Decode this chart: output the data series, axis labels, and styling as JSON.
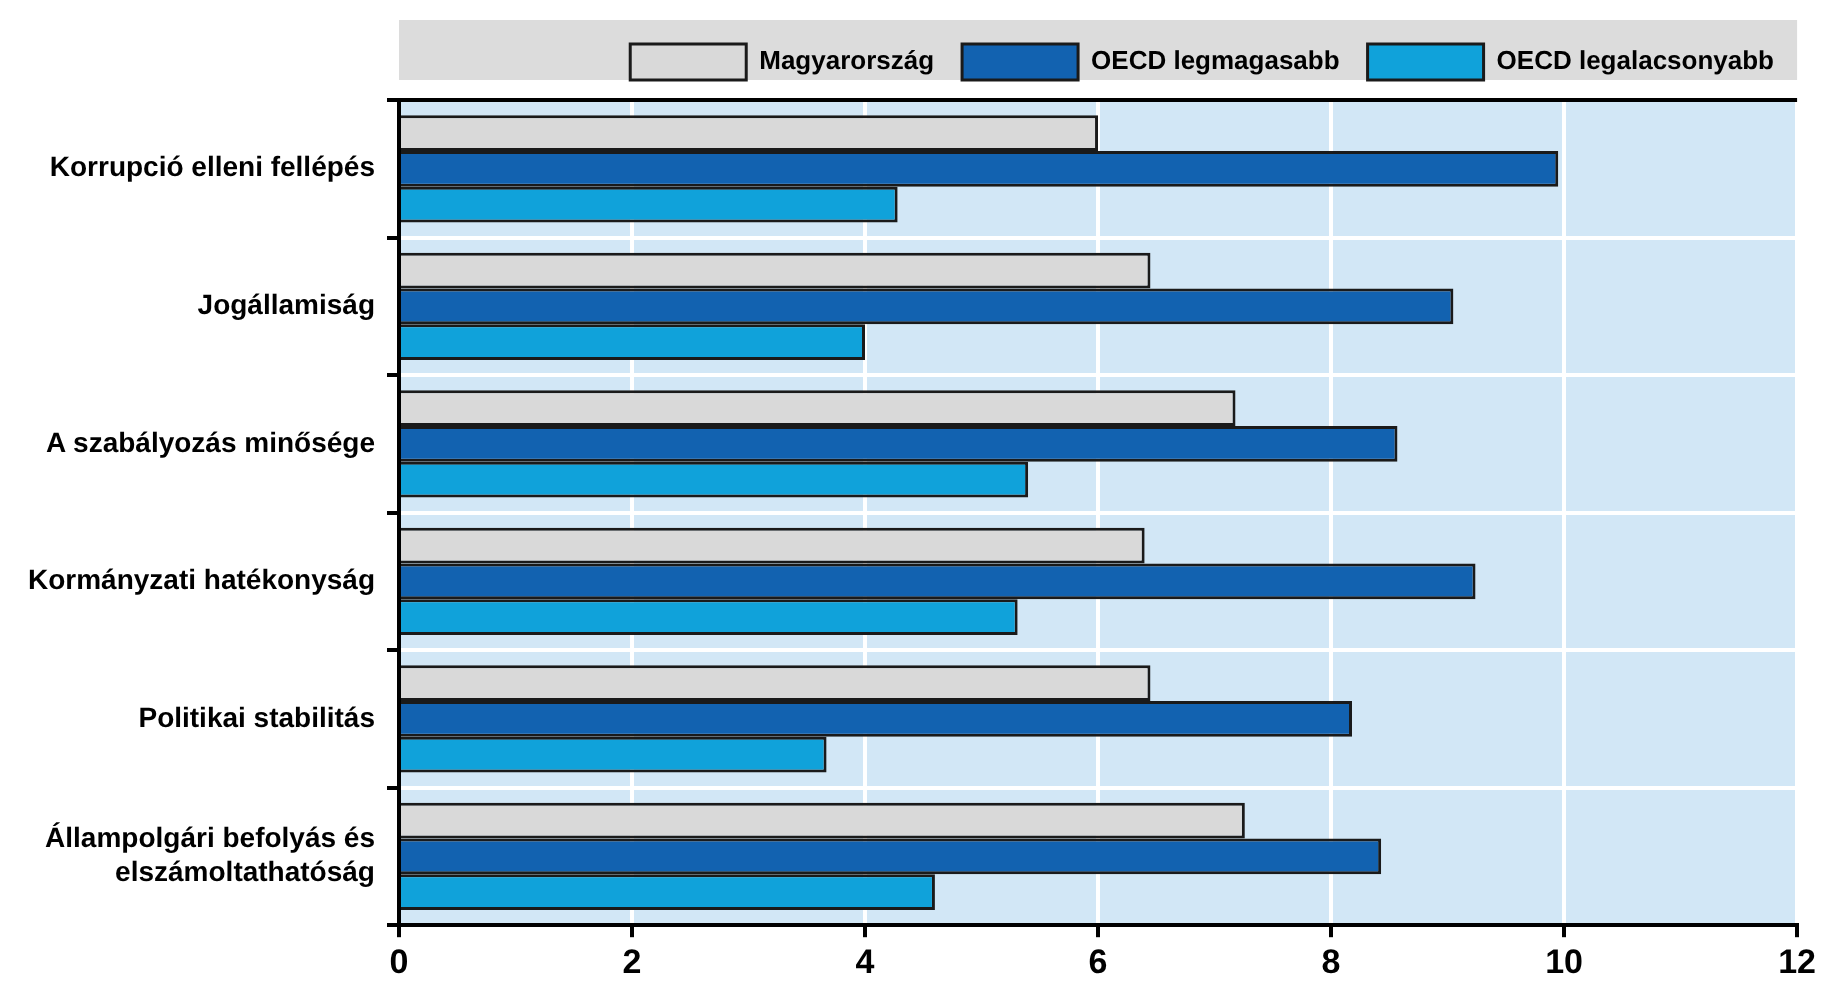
{
  "chart_data": {
    "type": "bar",
    "orientation": "horizontal",
    "categories": [
      "Korrupció elleni fellépés",
      "Jogállamiság",
      "A szabályozás minősége",
      "Kormányzati hatékonyság",
      "Politikai stabilitás",
      "Állampolgári befolyás és elszámoltathatóság"
    ],
    "series": [
      {
        "name": "Magyarország",
        "color": "#d9d9d9",
        "values": [
          6.0,
          6.45,
          7.18,
          6.4,
          6.45,
          7.26
        ]
      },
      {
        "name": "OECD legmagasabb",
        "color": "#1262b0",
        "values": [
          9.95,
          9.05,
          8.57,
          9.24,
          8.18,
          8.43
        ]
      },
      {
        "name": "OECD legalacsonyabb",
        "color": "#10a2da",
        "values": [
          4.28,
          4.0,
          5.4,
          5.31,
          3.67,
          4.6
        ]
      }
    ],
    "xlim": [
      0,
      12
    ],
    "xticks": [
      0,
      2,
      4,
      6,
      8,
      10,
      12
    ],
    "grid": true,
    "legend": "top right"
  }
}
